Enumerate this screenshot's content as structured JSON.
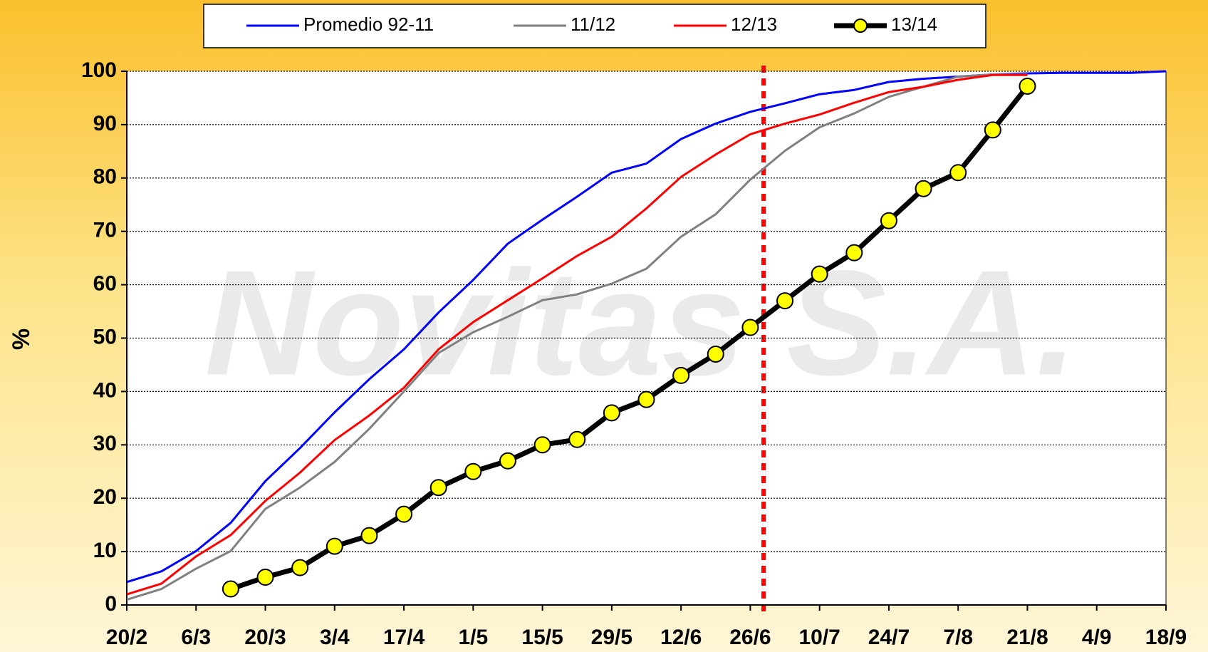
{
  "chart_data": {
    "type": "line",
    "y_label": "%",
    "watermark": "Novitas S.A.",
    "categories": [
      "20/2",
      null,
      "6/3",
      null,
      "20/3",
      null,
      "3/4",
      null,
      "17/4",
      null,
      "1/5",
      null,
      "15/5",
      null,
      "29/5",
      null,
      "12/6",
      null,
      "26/6",
      null,
      "10/7",
      null,
      "24/7",
      null,
      "7/8",
      null,
      "21/8",
      null,
      "4/9",
      null,
      "18/9"
    ],
    "ylim": [
      0,
      100
    ],
    "yticks": [
      0,
      10,
      20,
      30,
      40,
      50,
      60,
      70,
      80,
      90,
      100
    ],
    "grid": true,
    "series": [
      {
        "name": "Promedio 92-11",
        "color": "#0000ff",
        "values": [
          4.3,
          6.3,
          10.1,
          15.4,
          23.2,
          29.4,
          36.1,
          42.3,
          47.9,
          54.8,
          60.9,
          67.7,
          72.2,
          76.5,
          81,
          82.7,
          87.3,
          90.2,
          92.4,
          94,
          95.7,
          96.5,
          98,
          98.6,
          99,
          99.4,
          99.6,
          99.7,
          99.7,
          99.7,
          100
        ]
      },
      {
        "name": "11/12",
        "color": "#808080",
        "values": [
          1,
          3,
          6.8,
          10.1,
          18,
          22,
          26.8,
          33,
          40,
          47.2,
          51.1,
          54,
          57.1,
          58.2,
          60.2,
          63,
          69,
          73.2,
          79.7,
          85.1,
          89.5,
          92.1,
          95.2,
          97.1,
          99,
          99.4,
          99.4,
          null,
          null,
          null,
          null
        ]
      },
      {
        "name": "12/13",
        "color": "#ff0000",
        "values": [
          2,
          4,
          9.1,
          13.1,
          19.5,
          24.8,
          30.9,
          35.5,
          40.7,
          47.9,
          53,
          57.1,
          61.2,
          65.4,
          69,
          74.3,
          80.2,
          84.4,
          88.2,
          90.2,
          91.9,
          94.1,
          96.1,
          97.1,
          98.4,
          99.3,
          99.3,
          null,
          null,
          null,
          null
        ]
      },
      {
        "name": "13/14",
        "color": "#000000",
        "marker_color": "#ffff00",
        "values": [
          null,
          null,
          null,
          3,
          5.2,
          7,
          11,
          13,
          17,
          22,
          25,
          27,
          30,
          31,
          36,
          38.5,
          43,
          47,
          52,
          57,
          62,
          66,
          72,
          78,
          81,
          89,
          97.2,
          null,
          null,
          null,
          null
        ]
      }
    ]
  }
}
